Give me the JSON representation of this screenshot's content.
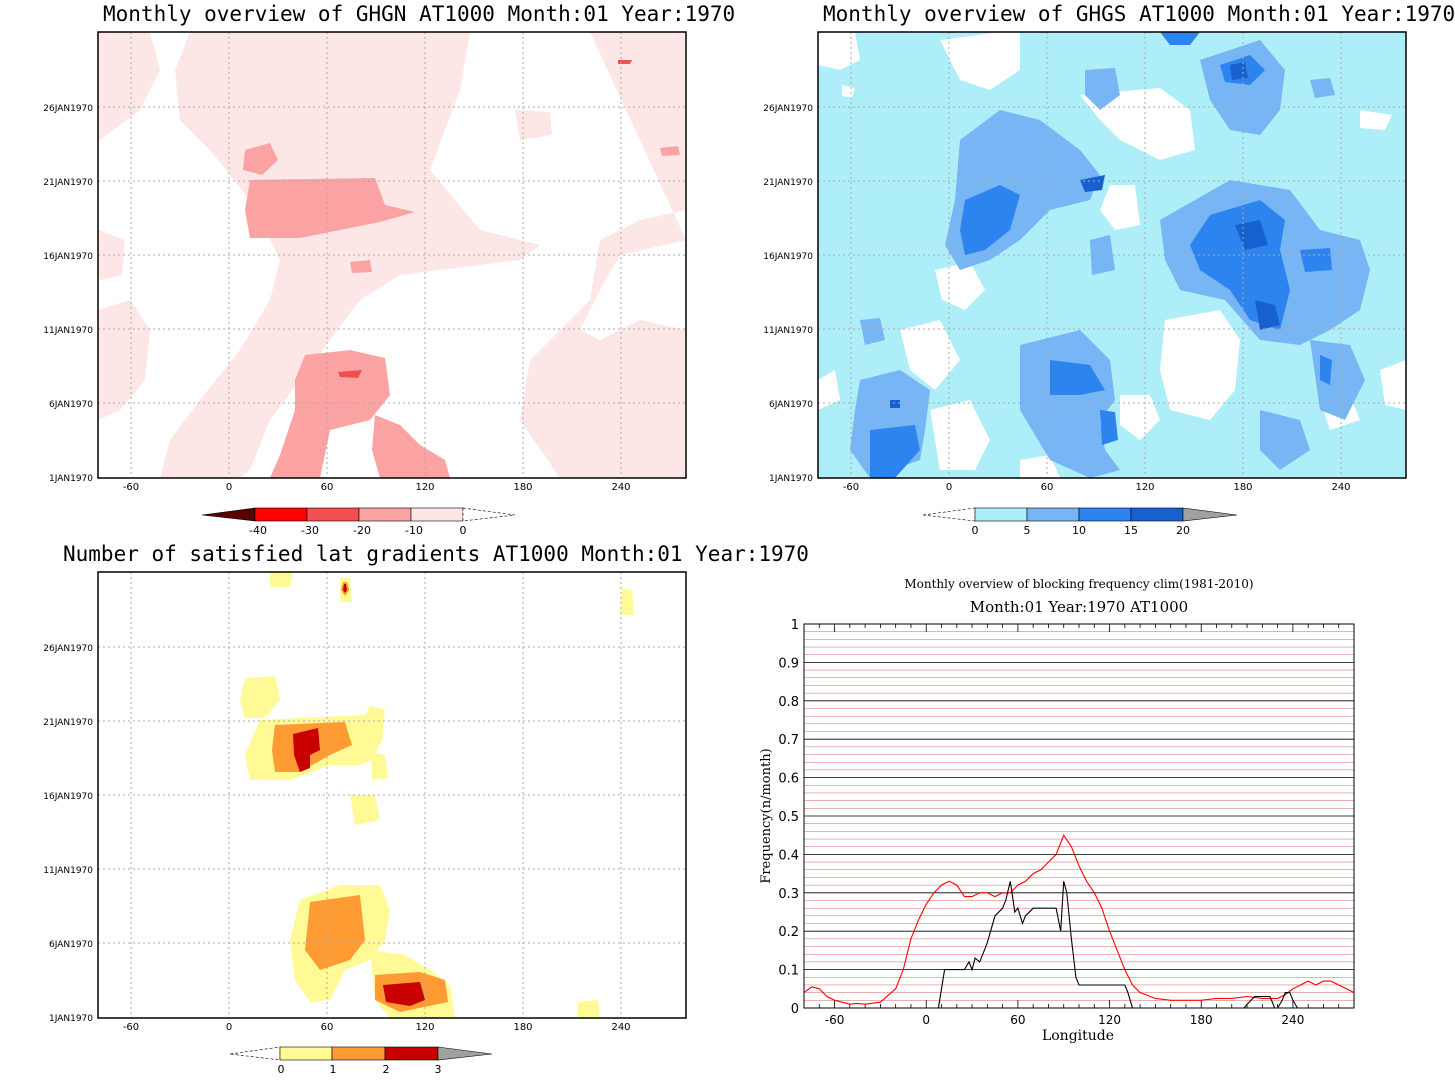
{
  "panels": {
    "ghgn": {
      "title": "Monthly overview of GHGN AT1000 Month:01 Year:1970",
      "yticks": [
        "1JAN1970",
        "6JAN1970",
        "11JAN1970",
        "16JAN1970",
        "21JAN1970",
        "26JAN1970"
      ],
      "xticks": [
        "-60",
        "0",
        "60",
        "120",
        "180",
        "240"
      ],
      "colorbar": {
        "labels": [
          "-40",
          "-30",
          "-20",
          "-10",
          "0"
        ],
        "colors": [
          "#5a0000",
          "#ff0000",
          "#f05050",
          "#fba3a3",
          "#fde6e6"
        ]
      }
    },
    "ghgs": {
      "title": "Monthly overview of GHGS AT1000 Month:01 Year:1970",
      "yticks": [
        "1JAN1970",
        "6JAN1970",
        "11JAN1970",
        "16JAN1970",
        "21JAN1970",
        "26JAN1970"
      ],
      "xticks": [
        "-60",
        "0",
        "60",
        "120",
        "180",
        "240"
      ],
      "colorbar": {
        "labels": [
          "0",
          "5",
          "10",
          "15",
          "20"
        ],
        "colors": [
          "#aeeef8",
          "#78b5f5",
          "#2e84ee",
          "#1761cf",
          "#a0a0a0"
        ]
      }
    },
    "gradients": {
      "title": "Number of satisfied lat gradients AT1000 Month:01 Year:1970",
      "yticks": [
        "1JAN1970",
        "6JAN1970",
        "11JAN1970",
        "16JAN1970",
        "21JAN1970",
        "26JAN1970"
      ],
      "xticks": [
        "-60",
        "0",
        "60",
        "120",
        "180",
        "240"
      ],
      "colorbar": {
        "labels": [
          "0",
          "1",
          "2",
          "3"
        ],
        "colors": [
          "#fffa96",
          "#ff9b32",
          "#c80000",
          "#a0a0a0"
        ]
      }
    }
  },
  "chart_data": {
    "type": "line",
    "title": "Monthly overview of blocking frequency clim(1981-2010)",
    "subtitle": "Month:01 Year:1970  AT1000",
    "xlabel": "Longitude",
    "ylabel": "Frequency(n/month)",
    "xlim": [
      -80,
      280
    ],
    "ylim": [
      0,
      1
    ],
    "xticks": [
      "-60",
      "0",
      "60",
      "120",
      "180",
      "240"
    ],
    "yticks": [
      "0",
      "0.1",
      "0.2",
      "0.3",
      "0.4",
      "0.5",
      "0.6",
      "0.7",
      "0.8",
      "0.9",
      "1"
    ],
    "colors": {
      "clim": "#ff0000",
      "year": "#000000",
      "minor_grid": "#cc6666",
      "major_grid": "#000000"
    },
    "series": [
      {
        "x": [
          -80,
          -75,
          -70,
          -65,
          -60,
          -55,
          -50,
          -45,
          -40,
          -30,
          -20,
          -15,
          -10,
          -5,
          0,
          5,
          10,
          15,
          20,
          25,
          30,
          35,
          40,
          45,
          50,
          55,
          60,
          65,
          70,
          75,
          80,
          85,
          88,
          90,
          95,
          100,
          105,
          110,
          115,
          120,
          125,
          130,
          135,
          140,
          150,
          160,
          170,
          180,
          190,
          200,
          210,
          220,
          230,
          235,
          240,
          245,
          250,
          255,
          260,
          265,
          270,
          275,
          280
        ],
        "y": [
          0.04,
          0.055,
          0.05,
          0.03,
          0.02,
          0.015,
          0.01,
          0.012,
          0.01,
          0.015,
          0.05,
          0.1,
          0.18,
          0.23,
          0.27,
          0.3,
          0.32,
          0.33,
          0.32,
          0.29,
          0.29,
          0.3,
          0.3,
          0.29,
          0.3,
          0.3,
          0.32,
          0.33,
          0.35,
          0.36,
          0.38,
          0.4,
          0.43,
          0.45,
          0.42,
          0.37,
          0.33,
          0.3,
          0.26,
          0.2,
          0.15,
          0.1,
          0.06,
          0.04,
          0.025,
          0.02,
          0.02,
          0.02,
          0.025,
          0.025,
          0.03,
          0.025,
          0.025,
          0.035,
          0.05,
          0.06,
          0.07,
          0.06,
          0.07,
          0.07,
          0.06,
          0.05,
          0.04
        ]
      },
      {
        "x": [
          8,
          10,
          12,
          15,
          20,
          25,
          28,
          30,
          32,
          35,
          38,
          40,
          45,
          50,
          52,
          55,
          58,
          60,
          63,
          65,
          70,
          75,
          80,
          85,
          88,
          90,
          92,
          95,
          98,
          100,
          102,
          105,
          110,
          115,
          120,
          125,
          130,
          132,
          135,
          140,
          150,
          160,
          170,
          180,
          190,
          200,
          208,
          210,
          215,
          220,
          225,
          228,
          230,
          233,
          235,
          238,
          240,
          243,
          245,
          250
        ],
        "y": [
          0,
          0.05,
          0.1,
          0.1,
          0.1,
          0.1,
          0.12,
          0.1,
          0.13,
          0.12,
          0.15,
          0.17,
          0.24,
          0.26,
          0.28,
          0.33,
          0.25,
          0.26,
          0.22,
          0.24,
          0.26,
          0.26,
          0.26,
          0.26,
          0.2,
          0.33,
          0.3,
          0.18,
          0.08,
          0.06,
          0.06,
          0.06,
          0.06,
          0.06,
          0.06,
          0.06,
          0.06,
          0.04,
          0,
          0,
          0,
          0,
          0,
          0,
          0,
          0,
          0,
          0.01,
          0.03,
          0.03,
          0.03,
          0,
          0,
          0.02,
          0.04,
          0.04,
          0.02,
          0,
          0,
          0
        ]
      }
    ]
  }
}
